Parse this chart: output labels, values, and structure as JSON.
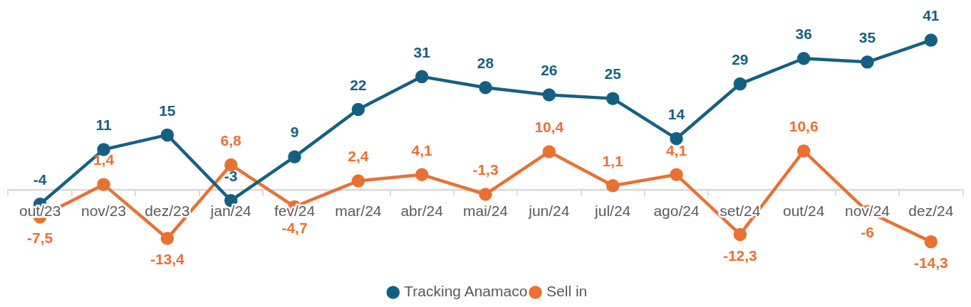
{
  "chart_data": {
    "type": "line",
    "categories": [
      "out/23",
      "nov/23",
      "dez/23",
      "jan/24",
      "fev/24",
      "mar/24",
      "abr/24",
      "mai/24",
      "jun/24",
      "jul/24",
      "ago/24",
      "set/24",
      "out/24",
      "nov/24",
      "dez/24"
    ],
    "series": [
      {
        "name": "Tracking Anamaco",
        "color": "#156082",
        "values": [
          -4,
          11,
          15,
          -3,
          9,
          22,
          31,
          28,
          26,
          25,
          14,
          29,
          36,
          35,
          41
        ],
        "value_labels": [
          "-4",
          "11",
          "15",
          "-3",
          "9",
          "22",
          "31",
          "28",
          "26",
          "25",
          "14",
          "29",
          "36",
          "35",
          "41"
        ]
      },
      {
        "name": "Sell in",
        "color": "#e97132",
        "values": [
          -7.5,
          1.4,
          -13.4,
          6.8,
          -4.7,
          2.4,
          4.1,
          -1.3,
          10.4,
          1.1,
          4.1,
          -12.3,
          10.6,
          -6,
          -14.3
        ],
        "value_labels": [
          "-7,5",
          "1,4",
          "-13,4",
          "6,8",
          "-4,7",
          "2,4",
          "4,1",
          "-1,3",
          "10,4",
          "1,1",
          "4,1",
          "-12,3",
          "10,6",
          "-6",
          "-14,3"
        ]
      }
    ],
    "marker": "circle",
    "legend": "bottom",
    "grid": false,
    "tick_labels": "x"
  }
}
